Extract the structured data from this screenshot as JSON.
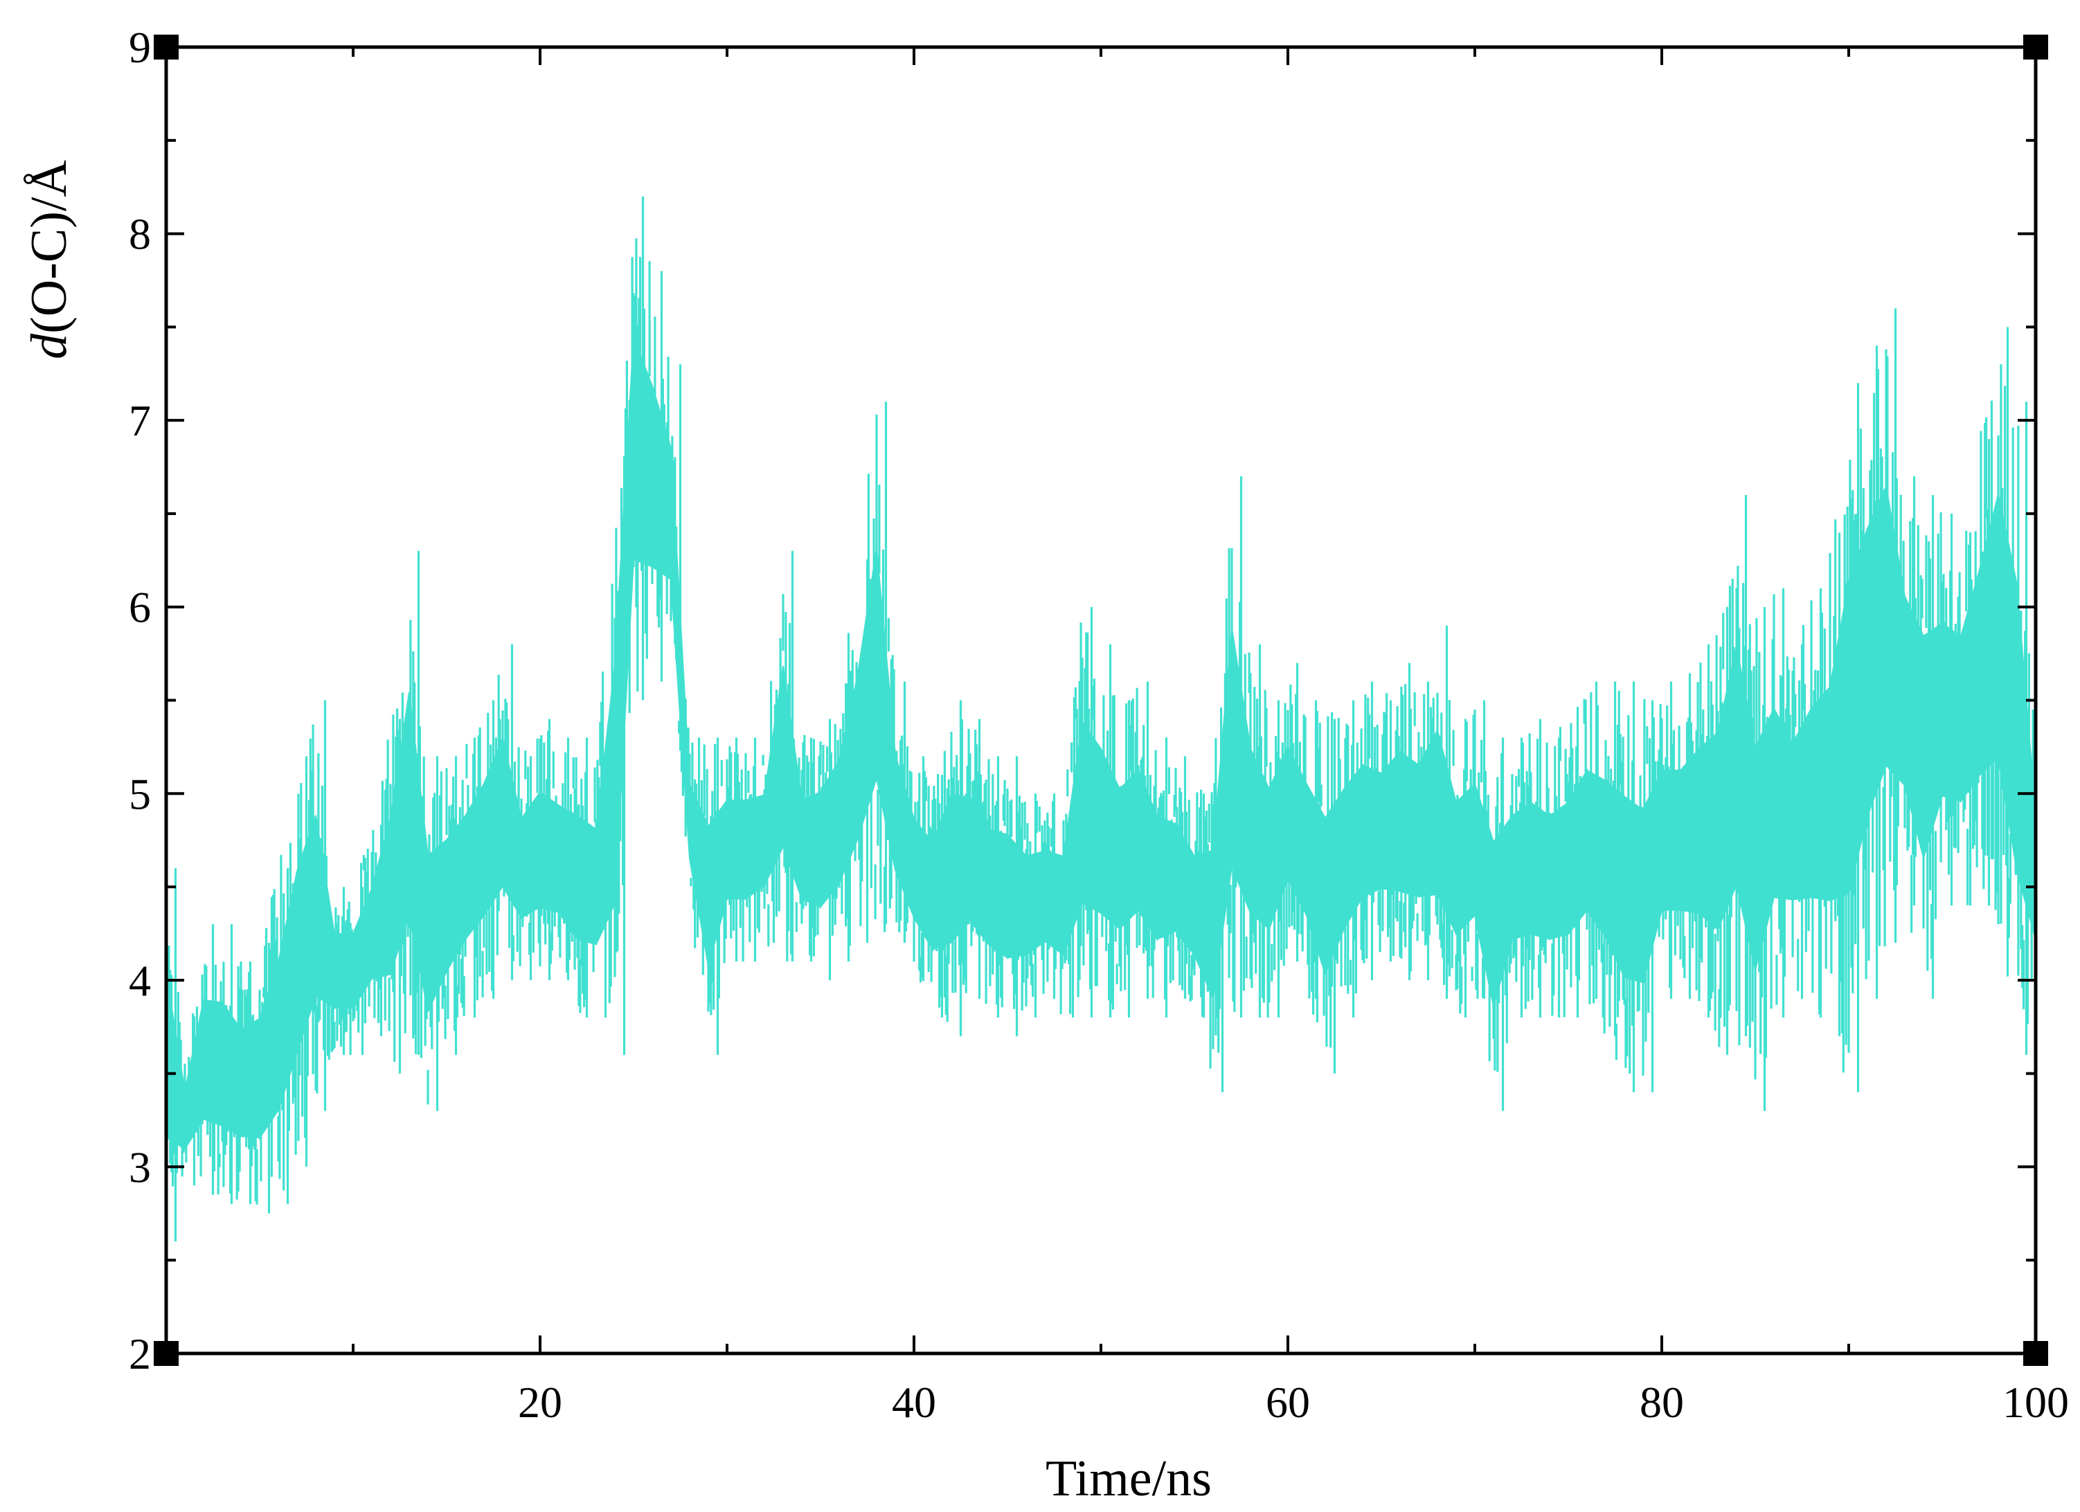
{
  "chart_data": {
    "type": "line",
    "title": "",
    "xlabel": "Time/ns",
    "ylabel": {
      "italic": "d",
      "rest": "(O-C)/Å"
    },
    "xlim": [
      0,
      100
    ],
    "ylim": [
      2,
      9
    ],
    "x_ticks": [
      20,
      40,
      60,
      80,
      100
    ],
    "x_minor_ticks": [
      10,
      30,
      50,
      70,
      90
    ],
    "y_ticks": [
      2,
      3,
      4,
      5,
      6,
      7,
      8,
      9
    ],
    "y_minor_ticks": [
      2.5,
      3.5,
      4.5,
      5.5,
      6.5,
      7.5,
      8.5
    ],
    "grid": false,
    "legend": "none",
    "series_color": "#40e0d0",
    "series": [
      {
        "x": [
          0,
          1,
          2,
          3,
          4,
          5,
          6,
          7,
          8,
          9,
          10,
          11,
          12,
          13,
          14,
          15,
          16,
          17,
          18,
          19,
          20,
          21,
          22,
          23,
          24,
          25,
          26,
          27,
          28,
          29,
          30,
          31,
          32,
          33,
          34,
          35,
          36,
          37,
          38,
          39,
          40,
          41,
          42,
          43,
          44,
          45,
          46,
          47,
          48,
          49,
          50,
          51,
          52,
          53,
          54,
          55,
          56,
          57,
          58,
          59,
          60,
          61,
          62,
          63,
          64,
          65,
          66,
          67,
          68,
          69,
          70,
          71,
          72,
          73,
          74,
          75,
          76,
          77,
          78,
          79,
          80,
          81,
          82,
          83,
          84,
          85,
          86,
          87,
          88,
          89,
          90,
          91,
          92,
          93,
          94,
          95,
          96,
          97,
          98,
          99,
          100
        ],
        "y_low": [
          2.6,
          2.9,
          2.85,
          2.8,
          2.8,
          2.75,
          2.8,
          3.0,
          3.3,
          3.6,
          3.6,
          3.7,
          3.5,
          3.6,
          3.3,
          3.6,
          3.8,
          3.9,
          4.0,
          4.0,
          4.0,
          4.0,
          3.8,
          3.8,
          3.6,
          5.5,
          5.6,
          5.7,
          4.4,
          3.6,
          4.1,
          4.1,
          4.2,
          4.1,
          4.1,
          4.0,
          4.1,
          4.2,
          4.3,
          4.2,
          4.0,
          3.8,
          3.7,
          3.9,
          3.8,
          3.7,
          3.8,
          3.9,
          3.8,
          3.8,
          3.8,
          3.8,
          3.9,
          3.8,
          3.9,
          3.8,
          3.4,
          3.8,
          3.8,
          3.8,
          4.1,
          3.9,
          3.5,
          3.8,
          4.0,
          4.1,
          4.0,
          4.0,
          3.9,
          3.8,
          3.9,
          3.3,
          3.8,
          3.8,
          3.8,
          3.8,
          3.9,
          3.7,
          3.4,
          3.4,
          3.9,
          3.9,
          3.8,
          3.6,
          3.7,
          3.3,
          3.8,
          3.9,
          3.8,
          3.7,
          3.4,
          3.9,
          4.2,
          4.4,
          3.9,
          4.4,
          4.4,
          4.4,
          4.3,
          3.6,
          3.8
        ],
        "y_high": [
          4.6,
          3.6,
          4.3,
          4.3,
          4.1,
          4.2,
          4.6,
          5.2,
          5.5,
          4.5,
          4.5,
          4.8,
          5.4,
          6.3,
          5.2,
          5.2,
          5.3,
          5.5,
          5.8,
          5.2,
          5.4,
          5.3,
          5.3,
          5.2,
          6.5,
          8.2,
          7.8,
          7.3,
          5.3,
          5.3,
          5.3,
          5.3,
          5.3,
          6.3,
          5.3,
          5.4,
          5.6,
          6.2,
          7.1,
          5.6,
          5.2,
          5.1,
          5.5,
          5.4,
          5.2,
          5.2,
          5.0,
          5.0,
          5.0,
          6.0,
          5.8,
          5.5,
          5.6,
          5.3,
          5.2,
          5.0,
          5.2,
          6.7,
          5.8,
          5.5,
          5.7,
          5.5,
          5.4,
          5.5,
          5.6,
          5.5,
          5.7,
          5.6,
          5.9,
          5.4,
          5.5,
          5.3,
          5.3,
          5.4,
          5.3,
          5.4,
          5.6,
          5.6,
          5.6,
          5.5,
          5.6,
          5.6,
          5.8,
          6.0,
          6.6,
          6.0,
          6.1,
          5.8,
          6.1,
          6.3,
          7.2,
          7.4,
          7.6,
          6.7,
          6.6,
          6.5,
          6.4,
          6.9,
          7.5,
          7.1,
          5.3
        ]
      }
    ]
  }
}
